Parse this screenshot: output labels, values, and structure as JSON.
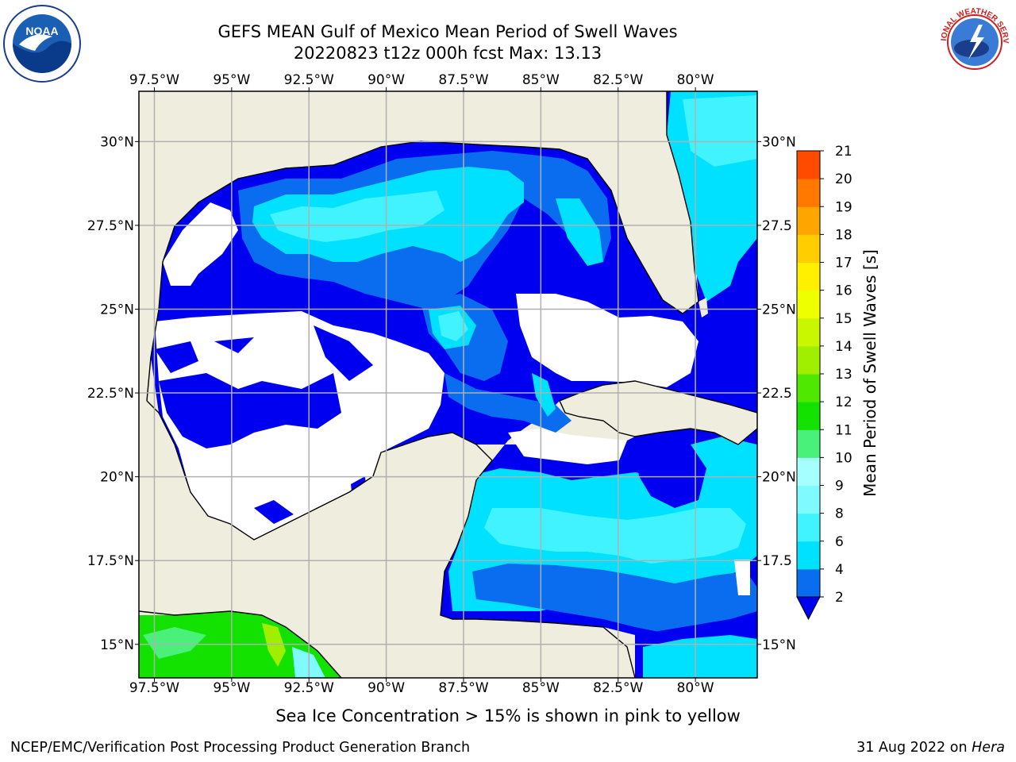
{
  "header": {
    "title_line1": "GEFS MEAN Gulf of Mexico Mean Period of Swell Waves",
    "title_line2": "20220823 t12z 000h fcst   Max: 13.13"
  },
  "subtitle": "Sea Ice Concentration > 15% is shown in pink to yellow",
  "footer": {
    "left": "NCEP/EMC/Verification Post Processing Product Generation Branch",
    "right_date": "31 Aug 2022 on",
    "right_host": "Hera"
  },
  "logos": {
    "noaa_text": "NOAA",
    "nws_text": "NATIONAL WEATHER SERVICE"
  },
  "chart_data": {
    "type": "heatmap",
    "map_region": "Gulf of Mexico",
    "lon_range": [
      -98,
      -78
    ],
    "lat_range": [
      14,
      31.5
    ],
    "lon_ticks": [
      "97.5°W",
      "95°W",
      "92.5°W",
      "90°W",
      "87.5°W",
      "85°W",
      "82.5°W",
      "80°W"
    ],
    "lon_values": [
      -97.5,
      -95,
      -92.5,
      -90,
      -87.5,
      -85,
      -82.5,
      -80
    ],
    "lat_ticks_left": [
      "30°N",
      "27.5°N",
      "25°N",
      "22.5°N",
      "20°N",
      "17.5°N",
      "15°N"
    ],
    "lat_ticks_right": [
      "30°N",
      "27.5",
      "25°N",
      "22.5",
      "20°N",
      "17.5",
      "15°N"
    ],
    "lat_values": [
      30,
      27.5,
      25,
      22.5,
      20,
      17.5,
      15
    ],
    "grid": true,
    "colorbar": {
      "label": "Mean Period of Swell Waves [s]",
      "levels": [
        2,
        4,
        6,
        8,
        9,
        10,
        11,
        12,
        13,
        14,
        15,
        16,
        17,
        18,
        19,
        20,
        21
      ],
      "colors": [
        "#0a6df0",
        "#00e1ff",
        "#40f3ff",
        "#7ffbff",
        "#a6ffff",
        "#49f07a",
        "#13e100",
        "#4fe800",
        "#a0ef00",
        "#c8f700",
        "#eeff00",
        "#fff000",
        "#ffcd00",
        "#ffa500",
        "#ff7800",
        "#ff4b00",
        "#ff1e00"
      ],
      "extend_min_color": "#0000f0",
      "extend": "min"
    },
    "colors": {
      "land": "#efeddd",
      "ocean_no_swell": "#ffffff",
      "under_min": "#0000f0",
      "gridline": "#b0b0b0"
    },
    "max_value": 13.13
  }
}
